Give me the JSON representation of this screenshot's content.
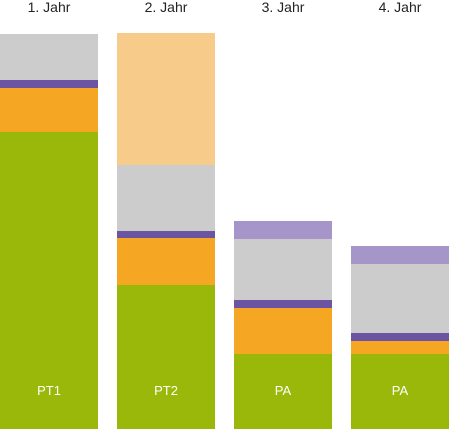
{
  "chart_data": {
    "type": "bar",
    "stacked": true,
    "categories": [
      "1. Jahr",
      "2. Jahr",
      "3. Jahr",
      "4. Jahr"
    ],
    "bar_labels": [
      "PT1",
      "PT2",
      "PA",
      "PA"
    ],
    "series": [
      {
        "color": "#99b80a",
        "values": [
          297,
          144,
          75,
          75
        ]
      },
      {
        "color": "#f5a623",
        "values": [
          44,
          47,
          46,
          13
        ]
      },
      {
        "color": "#6b55a3",
        "values": [
          8,
          7,
          8,
          8
        ]
      },
      {
        "color": "#cccccc",
        "values": [
          46,
          66,
          61,
          69
        ]
      },
      {
        "color": "#f7cb89",
        "values": [
          0,
          132,
          0,
          0
        ]
      },
      {
        "color": "#a595c9",
        "values": [
          0,
          0,
          18,
          18
        ]
      }
    ],
    "ylim": [
      0,
      395
    ],
    "grid": false,
    "legend": "none"
  }
}
